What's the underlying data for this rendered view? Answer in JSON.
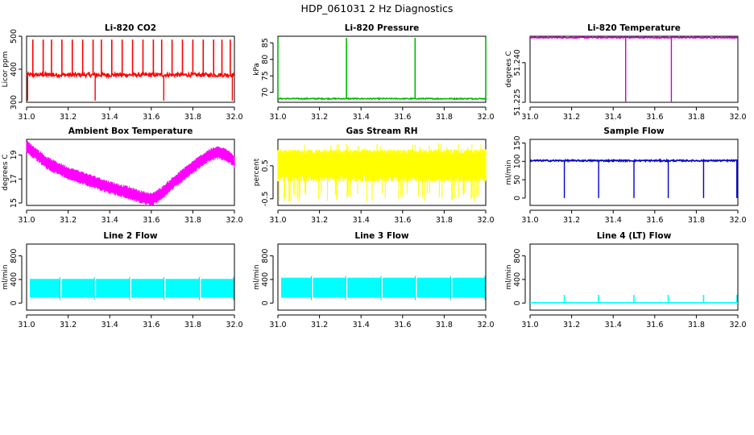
{
  "figure": {
    "title": "HDP_061031  2 Hz Diagnostics"
  },
  "chart_data": [
    {
      "type": "line",
      "title": "Li-820 CO2",
      "xlabel": "",
      "ylabel": "Licor ppm",
      "color": "#ff0000",
      "xlim": [
        31.0,
        32.0
      ],
      "ylim": [
        300,
        500
      ],
      "xticks": [
        "31.0",
        "31.2",
        "31.4",
        "31.6",
        "31.8",
        "32.0"
      ],
      "yticks": [
        "300",
        "400",
        "500"
      ],
      "series": [
        {
          "name": "CO2",
          "baseline": 383,
          "noise": 6,
          "spikes_up": [
            31.03,
            31.08,
            31.12,
            31.17,
            31.22,
            31.27,
            31.32,
            31.36,
            31.41,
            31.46,
            31.51,
            31.56,
            31.61,
            31.65,
            31.7,
            31.75,
            31.8,
            31.85,
            31.9,
            31.94,
            31.98
          ],
          "spike_high": 490,
          "spikes_down": [
            31.005,
            31.33,
            31.66,
            31.99
          ],
          "spike_low": 305
        }
      ]
    },
    {
      "type": "line",
      "title": "Li-820 Pressure",
      "xlabel": "",
      "ylabel": "kPa",
      "color": "#00bb00",
      "xlim": [
        31.0,
        32.0
      ],
      "ylim": [
        67,
        87
      ],
      "xticks": [
        "31.0",
        "31.2",
        "31.4",
        "31.6",
        "31.8",
        "32.0"
      ],
      "yticks": [
        "70",
        "75",
        "80",
        "85"
      ],
      "series": [
        {
          "name": "Pressure",
          "baseline": 68.1,
          "noise": 0.15,
          "spikes_up": [
            31.0,
            31.33,
            31.66,
            32.0
          ],
          "spike_high": 86.5,
          "spikes_down": [],
          "spike_low": 68
        }
      ]
    },
    {
      "type": "line",
      "title": "Li-820 Temperature",
      "xlabel": "",
      "ylabel": "degrees C",
      "color": "#cc00cc",
      "xlim": [
        31.0,
        32.0
      ],
      "ylim": [
        51.225,
        51.25
      ],
      "xticks": [
        "31.0",
        "31.2",
        "31.4",
        "31.6",
        "31.8",
        "32.0"
      ],
      "yticks": [
        "51.225",
        "51.240"
      ],
      "series": [
        {
          "name": "Temperature",
          "baseline": 51.2495,
          "noise": 0.0002,
          "spikes_up": [],
          "spike_high": 51.25,
          "spikes_down": [
            31.46,
            31.68
          ],
          "spike_low": 51.225
        }
      ]
    },
    {
      "type": "line",
      "title": "Ambient Box Temperature",
      "xlabel": "",
      "ylabel": "degrees C",
      "color": "#ff00ff",
      "xlim": [
        31.0,
        32.0
      ],
      "ylim": [
        14.8,
        20.3
      ],
      "xticks": [
        "31.0",
        "31.2",
        "31.4",
        "31.6",
        "31.8",
        "32.0"
      ],
      "yticks": [
        "15",
        "17",
        "19"
      ],
      "series": [
        {
          "name": "Box Temp",
          "x": [
            31.0,
            31.05,
            31.1,
            31.2,
            31.3,
            31.4,
            31.5,
            31.55,
            31.6,
            31.65,
            31.7,
            31.8,
            31.88,
            31.92,
            31.96,
            32.0
          ],
          "y": [
            19.7,
            19.0,
            18.3,
            17.5,
            16.9,
            16.3,
            15.8,
            15.5,
            15.3,
            15.8,
            16.6,
            18.0,
            19.0,
            19.2,
            19.0,
            18.5
          ],
          "band": 0.55
        }
      ]
    },
    {
      "type": "line",
      "title": "Gas Stream RH",
      "xlabel": "",
      "ylabel": "percent",
      "color": "#ffff00",
      "xlim": [
        31.0,
        32.0
      ],
      "ylim": [
        -0.7,
        1.3
      ],
      "xticks": [
        "31.0",
        "31.2",
        "31.4",
        "31.6",
        "31.8",
        "32.0"
      ],
      "yticks": [
        "-0.5",
        "0.5"
      ],
      "series": [
        {
          "name": "RH",
          "band_low": 0.0,
          "band_high": 1.0,
          "outlier_low": -0.6,
          "outlier_high": 1.2
        }
      ]
    },
    {
      "type": "line",
      "title": "Sample Flow",
      "xlabel": "",
      "ylabel": "ml/min",
      "color": "#0000cc",
      "xlim": [
        31.0,
        32.0
      ],
      "ylim": [
        -20,
        160
      ],
      "xticks": [
        "31.0",
        "31.2",
        "31.4",
        "31.6",
        "31.8",
        "32.0"
      ],
      "yticks": [
        "0",
        "50",
        "100",
        "150"
      ],
      "series": [
        {
          "name": "Sample Flow",
          "baseline": 102,
          "noise": 2,
          "spikes_up": [],
          "spike_high": 105,
          "spikes_down": [
            31.165,
            31.33,
            31.5,
            31.665,
            31.835,
            31.995
          ],
          "spike_low": 0
        }
      ]
    },
    {
      "type": "area",
      "title": "Line 2 Flow",
      "xlabel": "",
      "ylabel": "ml/min",
      "color": "#00ffff",
      "xlim": [
        31.0,
        32.0
      ],
      "ylim": [
        -120,
        1000
      ],
      "xticks": [
        "31.0",
        "31.2",
        "31.4",
        "31.6",
        "31.8",
        "32.0"
      ],
      "yticks": [
        "0",
        "400",
        "800"
      ],
      "series": [
        {
          "name": "Line 2",
          "low": 90,
          "high": 410,
          "gaps": [
            31.165,
            31.33,
            31.5,
            31.665,
            31.835
          ]
        }
      ]
    },
    {
      "type": "area",
      "title": "Line 3 Flow",
      "xlabel": "",
      "ylabel": "ml/min",
      "color": "#00ffff",
      "xlim": [
        31.0,
        32.0
      ],
      "ylim": [
        -120,
        1000
      ],
      "xticks": [
        "31.0",
        "31.2",
        "31.4",
        "31.6",
        "31.8",
        "32.0"
      ],
      "yticks": [
        "0",
        "400",
        "800"
      ],
      "series": [
        {
          "name": "Line 3",
          "low": 90,
          "high": 430,
          "gaps": [
            31.165,
            31.33,
            31.5,
            31.665,
            31.835
          ]
        }
      ]
    },
    {
      "type": "line",
      "title": "Line 4 (LT) Flow",
      "xlabel": "",
      "ylabel": "ml/min",
      "color": "#00ffff",
      "xlim": [
        31.0,
        32.0
      ],
      "ylim": [
        -120,
        1000
      ],
      "xticks": [
        "31.0",
        "31.2",
        "31.4",
        "31.6",
        "31.8",
        "32.0"
      ],
      "yticks": [
        "0",
        "400",
        "800"
      ],
      "series": [
        {
          "name": "Line 4",
          "baseline": 5,
          "noise": 0,
          "spikes_up": [
            31.165,
            31.33,
            31.5,
            31.665,
            31.835,
            31.995
          ],
          "spike_high": 140,
          "spikes_down": [],
          "spike_low": 0
        }
      ]
    }
  ]
}
